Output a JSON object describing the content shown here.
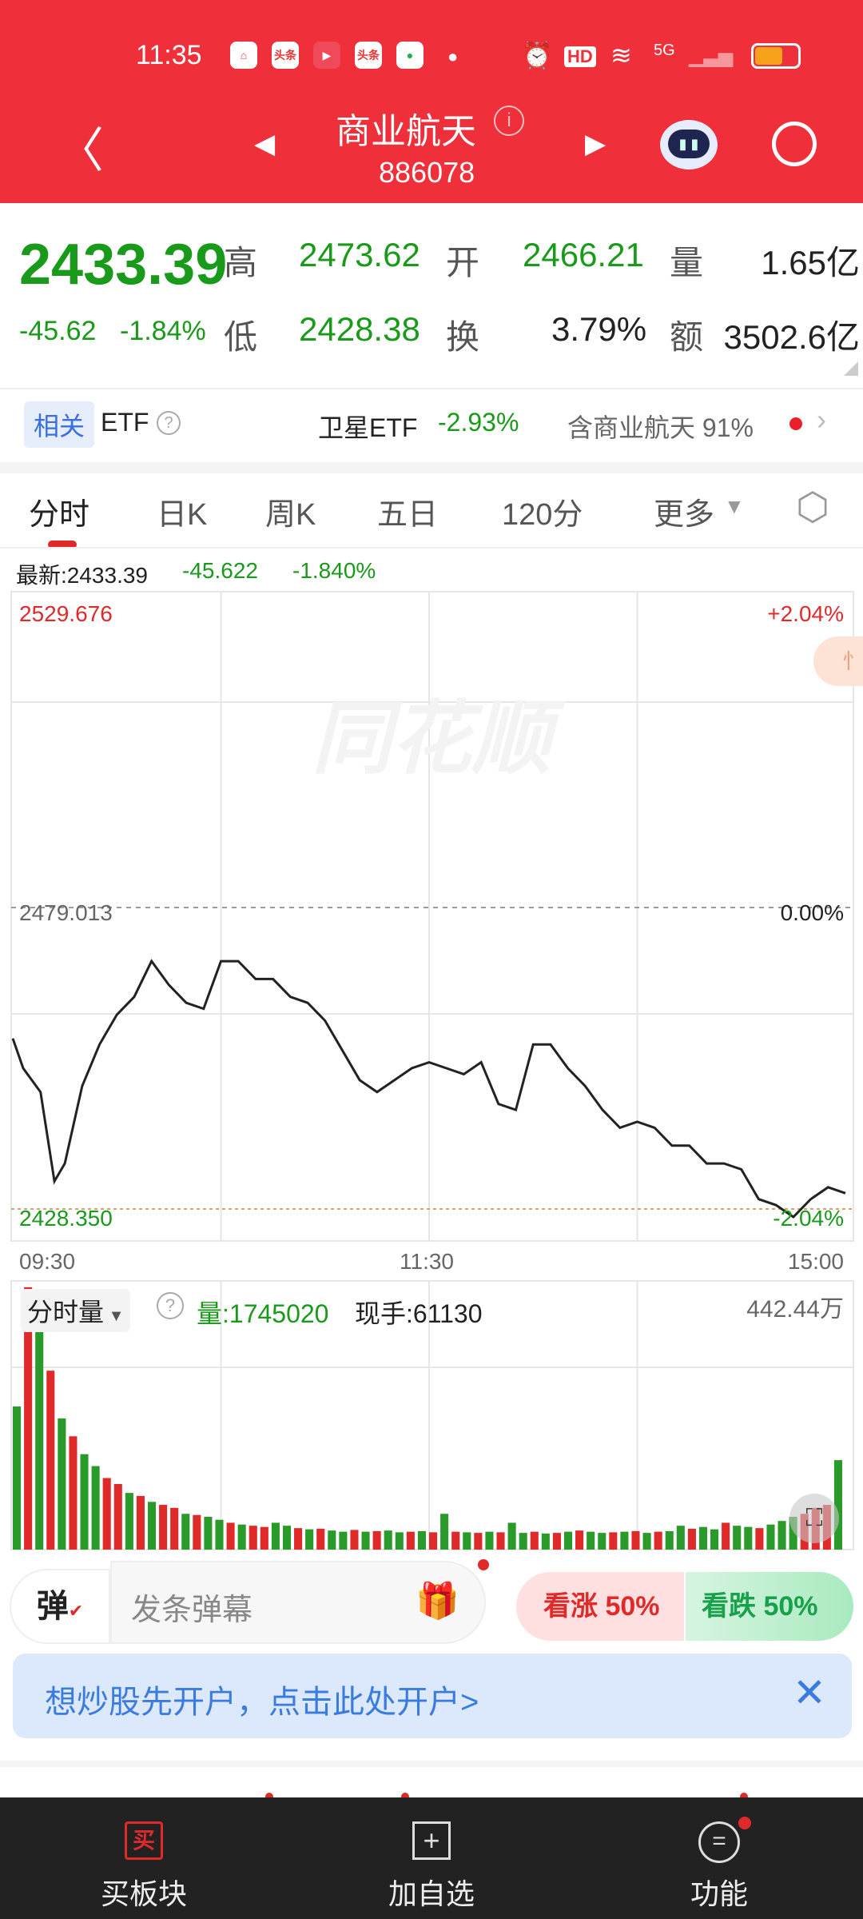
{
  "status": {
    "time": "11:35",
    "icons": [
      "app-icon",
      "toutiao-icon",
      "video-icon",
      "toutiao-lite-icon",
      "message-icon",
      "dot-icon",
      "alarm-icon",
      "hd-icon",
      "wifi-icon",
      "5g-signal-icon",
      "signal-icon",
      "battery-icon"
    ],
    "hd": "HD",
    "net": "5G"
  },
  "header": {
    "title": "商业航天",
    "code": "886078"
  },
  "quote": {
    "price": "2433.39",
    "change": "-45.62",
    "pct": "-1.84%",
    "high_label": "高",
    "high": "2473.62",
    "open_label": "开",
    "open": "2466.21",
    "vol_label": "量",
    "vol": "1.65亿",
    "low_label": "低",
    "low": "2428.38",
    "turn_label": "换",
    "turn": "3.79%",
    "amt_label": "额",
    "amt": "3502.6亿"
  },
  "etf": {
    "tag": "相关",
    "label": "ETF",
    "name": "卫星ETF",
    "pct": "-2.93%",
    "contains": "含商业航天 91%"
  },
  "tabs": [
    "分时",
    "日K",
    "周K",
    "五日",
    "120分",
    "更多"
  ],
  "info": {
    "latest": "最新:2433.39",
    "chg": "-45.622",
    "pct": "-1.840%"
  },
  "chart_data": {
    "type": "line",
    "y_top": "2529.676",
    "y_mid": "2479.013",
    "y_bot": "2428.350",
    "pct_top": "+2.04%",
    "pct_mid": "0.00%",
    "pct_bot": "-2.04%",
    "ylim": [
      2428.35,
      2529.676
    ],
    "x_ticks": [
      "09:30",
      "11:30",
      "15:00"
    ],
    "watermark": "同花顺",
    "x_min": [
      0,
      3,
      8,
      12,
      15,
      20,
      25,
      30,
      35,
      40,
      45,
      50,
      55,
      60,
      65,
      70,
      75,
      80,
      85,
      90,
      95,
      100,
      105,
      110,
      115,
      120,
      125,
      130,
      135,
      140,
      145,
      150,
      155,
      160,
      165,
      170,
      175,
      180,
      185,
      190,
      195,
      200,
      205,
      210,
      215,
      220,
      225,
      230,
      235,
      240
    ],
    "price": [
      2457,
      2452,
      2448,
      2433,
      2436,
      2449,
      2456,
      2461,
      2464,
      2470,
      2466,
      2463,
      2462,
      2470,
      2470,
      2467,
      2467,
      2464,
      2463,
      2460,
      2455,
      2450,
      2448,
      2450,
      2452,
      2453,
      2452,
      2451,
      2453,
      2446,
      2445,
      2456,
      2456,
      2452,
      2449,
      2445,
      2442,
      2443,
      2442,
      2439,
      2439,
      2436,
      2436,
      2435,
      2430,
      2429,
      2427,
      2430,
      2432,
      2431
    ],
    "color_line": "#222"
  },
  "volume": {
    "label": "分时量",
    "vol": "量:1745020",
    "hand": "现手:61130",
    "max": "442.44万",
    "values": [
      240,
      440,
      380,
      300,
      220,
      190,
      160,
      140,
      120,
      110,
      95,
      90,
      80,
      75,
      70,
      60,
      58,
      55,
      50,
      45,
      42,
      40,
      38,
      45,
      40,
      36,
      34,
      35,
      32,
      30,
      33,
      30,
      31,
      32,
      29,
      30,
      31,
      29,
      60,
      30,
      29,
      28,
      30,
      29,
      45,
      28,
      30,
      27,
      28,
      30,
      32,
      30,
      28,
      29,
      30,
      31,
      28,
      30,
      31,
      40,
      35,
      38,
      34,
      45,
      40,
      38,
      36,
      42,
      48,
      55,
      60,
      70,
      75,
      150
    ],
    "colors": [
      "g",
      "r",
      "g",
      "r",
      "g",
      "r",
      "g",
      "g",
      "r",
      "r",
      "g",
      "r",
      "g",
      "r",
      "r",
      "g",
      "r",
      "g",
      "g",
      "r",
      "g",
      "r",
      "r",
      "g",
      "g",
      "r",
      "g",
      "r",
      "g",
      "g",
      "r",
      "g",
      "r",
      "g",
      "g",
      "r",
      "g",
      "r",
      "g",
      "r",
      "g",
      "r",
      "g",
      "r",
      "g",
      "g",
      "r",
      "g",
      "r",
      "g",
      "r",
      "g",
      "g",
      "r",
      "g",
      "r",
      "g",
      "r",
      "g",
      "g",
      "r",
      "g",
      "g",
      "r",
      "g",
      "g",
      "r",
      "g",
      "g",
      "g",
      "r",
      "r",
      "r",
      "g"
    ]
  },
  "danmu": {
    "tag": "弹",
    "placeholder": "发条弹幕"
  },
  "vote": {
    "up": "看涨 50%",
    "down": "看跌 50%"
  },
  "banner": {
    "text": "想炒股先开户，点击此处开户>"
  },
  "bottom": [
    {
      "label": "买板块",
      "icon": "买"
    },
    {
      "label": "加自选",
      "icon": "+"
    },
    {
      "label": "功能",
      "icon": "="
    }
  ],
  "colors": {
    "header": "#ef2f3a",
    "up": "#e02a2a",
    "down": "#1a9a1a"
  }
}
